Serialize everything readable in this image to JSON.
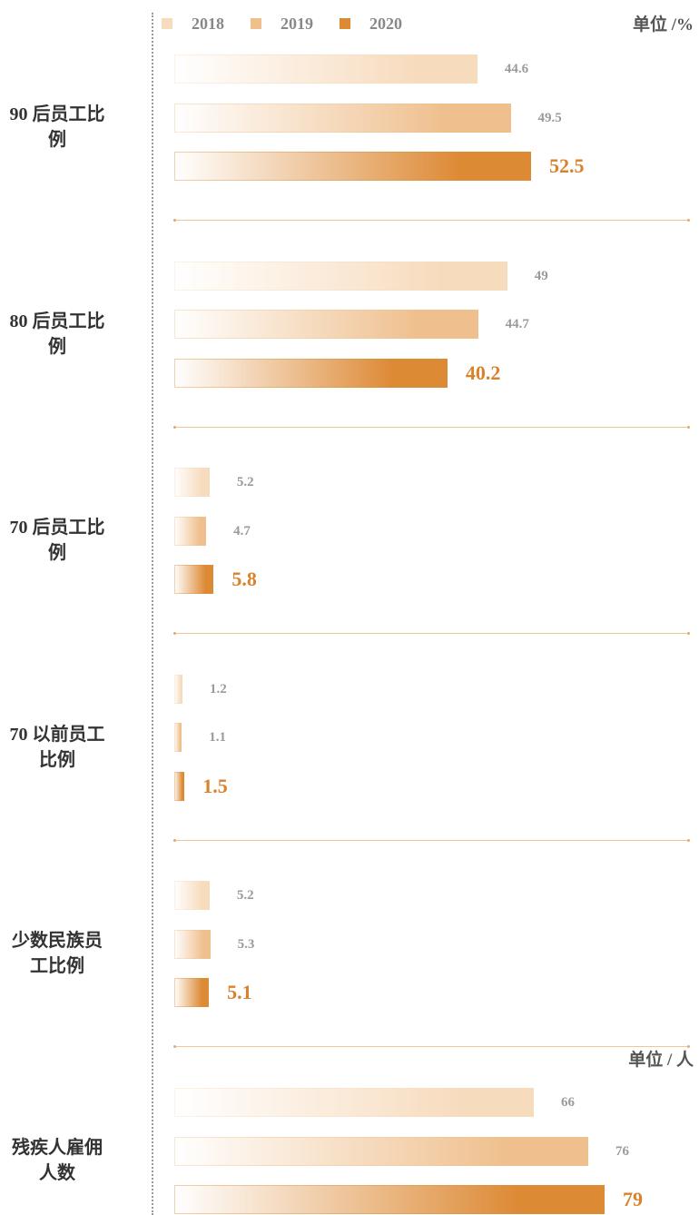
{
  "chart_data": [
    {
      "type": "bar",
      "unit": "单位 /%",
      "categories": [
        "90 后员工比例",
        "80 后员工比例",
        "70 后员工比例",
        "70 以前员工比例",
        "少数民族员工比例"
      ],
      "series": [
        {
          "name": "2018",
          "color": "#f7dbbd",
          "values": [
            44.6,
            49,
            5.2,
            1.2,
            5.2
          ]
        },
        {
          "name": "2019",
          "color": "#efc08e",
          "values": [
            49.5,
            44.7,
            4.7,
            1.1,
            5.3
          ]
        },
        {
          "name": "2020",
          "color": "#dd8a35",
          "values": [
            52.5,
            40.2,
            5.8,
            1.5,
            5.1
          ]
        }
      ]
    },
    {
      "type": "bar",
      "unit": "单位 / 人",
      "categories": [
        "残疾人雇佣人数"
      ],
      "series": [
        {
          "color": "#f7dbbd",
          "values": [
            66
          ]
        },
        {
          "color": "#efc08e",
          "values": [
            76
          ]
        },
        {
          "color": "#dd8a35",
          "values": [
            79
          ]
        }
      ]
    }
  ]
}
